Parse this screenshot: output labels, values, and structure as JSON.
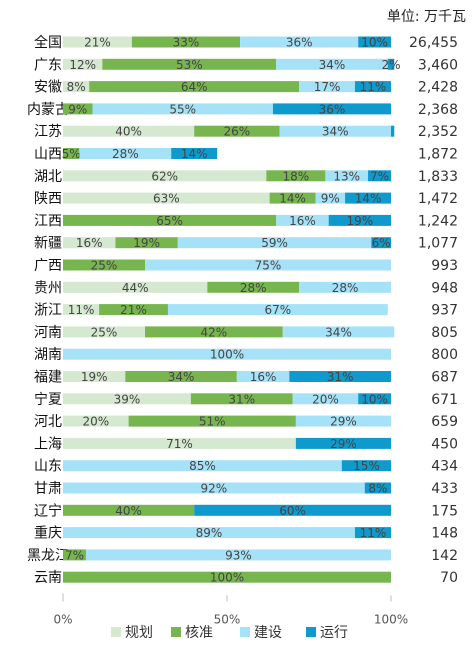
{
  "unit_label": "单位: 万千瓦",
  "chart_data": {
    "type": "bar",
    "orientation": "horizontal",
    "stacked": "percent",
    "categories": [
      "全国",
      "广东",
      "安徽",
      "内蒙古",
      "江苏",
      "山西",
      "湖北",
      "陕西",
      "江西",
      "新疆",
      "广西",
      "贵州",
      "浙江",
      "河南",
      "湖南",
      "福建",
      "宁夏",
      "河北",
      "上海",
      "山东",
      "甘肃",
      "辽宁",
      "重庆",
      "黑龙江",
      "云南"
    ],
    "totals": [
      "26,455",
      "3,460",
      "2,428",
      "2,368",
      "2,352",
      "1,872",
      "1,833",
      "1,472",
      "1,242",
      "1,077",
      "993",
      "948",
      "937",
      "805",
      "800",
      "687",
      "671",
      "659",
      "450",
      "434",
      "433",
      "175",
      "148",
      "142",
      "70"
    ],
    "series": [
      {
        "name": "规划",
        "color": "#d5e8d0",
        "values": [
          21,
          12,
          8,
          0,
          40,
          0,
          62,
          63,
          0,
          16,
          0,
          44,
          11,
          25,
          0,
          19,
          39,
          20,
          71,
          0,
          0,
          0,
          0,
          0,
          0
        ]
      },
      {
        "name": "核准",
        "color": "#77b54f",
        "values": [
          33,
          53,
          64,
          9,
          26,
          5,
          18,
          14,
          65,
          19,
          25,
          28,
          21,
          42,
          0,
          34,
          31,
          51,
          0,
          0,
          0,
          40,
          0,
          7,
          100
        ]
      },
      {
        "name": "建设",
        "color": "#a6e2f7",
        "values": [
          36,
          34,
          17,
          55,
          34,
          28,
          13,
          9,
          16,
          59,
          75,
          28,
          67,
          34,
          100,
          16,
          20,
          29,
          0,
          85,
          92,
          0,
          89,
          93,
          0
        ]
      },
      {
        "name": "运行",
        "color": "#0e9acd",
        "values": [
          10,
          2,
          11,
          36,
          1,
          14,
          7,
          14,
          19,
          6,
          0,
          0,
          0,
          0,
          0,
          31,
          10,
          0,
          29,
          15,
          8,
          60,
          11,
          0,
          0
        ]
      }
    ],
    "labels": [
      [
        "21%",
        "33%",
        "36%",
        "10%"
      ],
      [
        "12%",
        "53%",
        "34%",
        "2%"
      ],
      [
        "8%",
        "64%",
        "17%",
        "11%"
      ],
      [
        "",
        "9%",
        "55%",
        "36%"
      ],
      [
        "40%",
        "26%",
        "34%",
        ""
      ],
      [
        "",
        "5%",
        "28%",
        "14%"
      ],
      [
        "62%",
        "18%",
        "13%",
        "7%"
      ],
      [
        "63%",
        "14%",
        "9%",
        "14%"
      ],
      [
        "",
        "65%",
        "16%",
        "19%"
      ],
      [
        "16%",
        "19%",
        "59%",
        "6%"
      ],
      [
        "",
        "25%",
        "75%",
        ""
      ],
      [
        "44%",
        "28%",
        "28%",
        ""
      ],
      [
        "11%",
        "21%",
        "67%",
        ""
      ],
      [
        "25%",
        "42%",
        "34%",
        ""
      ],
      [
        "",
        "",
        "100%",
        ""
      ],
      [
        "19%",
        "34%",
        "16%",
        "31%"
      ],
      [
        "39%",
        "31%",
        "20%",
        "10%"
      ],
      [
        "20%",
        "51%",
        "29%",
        ""
      ],
      [
        "71%",
        "",
        "",
        "29%"
      ],
      [
        "",
        "",
        "85%",
        "15%"
      ],
      [
        "",
        "",
        "92%",
        "8%"
      ],
      [
        "",
        "40%",
        "",
        "60%"
      ],
      [
        "",
        "",
        "89%",
        "11%"
      ],
      [
        "",
        "7%",
        "93%",
        ""
      ],
      [
        "",
        "100%",
        "",
        ""
      ]
    ],
    "x_ticks": [
      "0%",
      "50%",
      "100%"
    ],
    "xlim": [
      0,
      100
    ],
    "legend_position": "bottom"
  }
}
